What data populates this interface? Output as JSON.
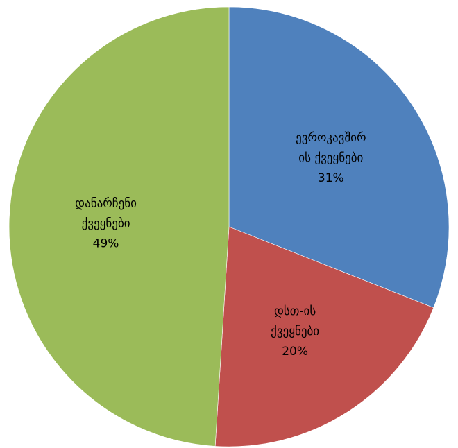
{
  "chart_data": {
    "type": "pie",
    "start_angle_deg": 0,
    "direction": "clockwise",
    "slices": [
      {
        "label_lines": [
          "ევროკავშირ",
          "ის ქვეყნები"
        ],
        "value": 31,
        "value_label": "31%",
        "color": "#4F81BD"
      },
      {
        "label_lines": [
          "დსთ-ის",
          "ქვეყნები"
        ],
        "value": 20,
        "value_label": "20%",
        "color": "#C0504D"
      },
      {
        "label_lines": [
          "დანარჩენი",
          "ქვეყნები"
        ],
        "value": 49,
        "value_label": "49%",
        "color": "#9BBB59"
      }
    ]
  }
}
